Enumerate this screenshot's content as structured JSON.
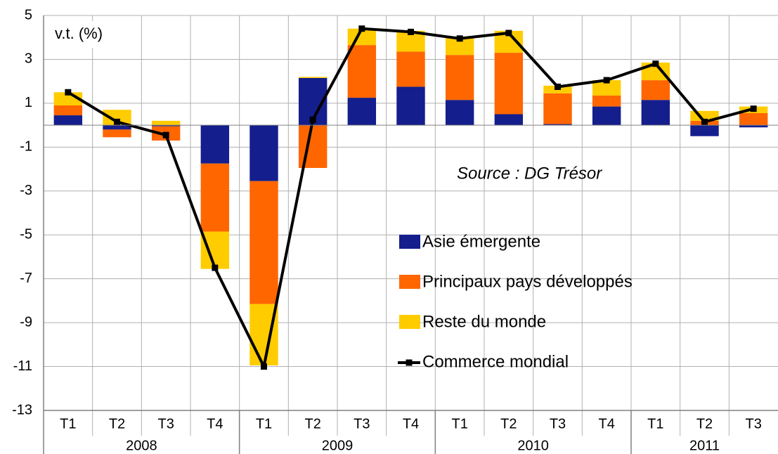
{
  "chart_data": {
    "type": "bar",
    "stacked": true,
    "y_label": "v.t. (%)",
    "annotation": "Source : DG Trésor",
    "categories": [
      "T1",
      "T2",
      "T3",
      "T4",
      "T1",
      "T2",
      "T3",
      "T4",
      "T1",
      "T2",
      "T3",
      "T4",
      "T1",
      "T2",
      "T3"
    ],
    "groups": [
      "2008",
      "2009",
      "2010",
      "2011"
    ],
    "series": [
      {
        "name": "Asie émergente",
        "type": "bar",
        "color": "#141e8c",
        "values": [
          0.45,
          -0.2,
          -0.05,
          -1.75,
          -2.55,
          2.15,
          1.25,
          1.75,
          1.15,
          0.5,
          0.05,
          0.85,
          1.15,
          -0.5,
          -0.1
        ]
      },
      {
        "name": "Principaux pays développés",
        "type": "bar",
        "color": "#ff6600",
        "values": [
          0.45,
          -0.35,
          -0.65,
          -3.1,
          -5.6,
          -1.95,
          2.4,
          1.6,
          2.05,
          2.8,
          1.4,
          0.5,
          0.9,
          0.2,
          0.55
        ]
      },
      {
        "name": "Reste du monde",
        "type": "bar",
        "color": "#ffcc00",
        "values": [
          0.6,
          0.7,
          0.2,
          -1.7,
          -2.8,
          0.05,
          0.75,
          0.95,
          0.8,
          1.0,
          0.35,
          0.7,
          0.8,
          0.45,
          0.3
        ]
      },
      {
        "name": "Commerce mondial",
        "type": "line",
        "color": "#000000",
        "values": [
          1.5,
          0.15,
          -0.45,
          -6.5,
          -11.0,
          0.25,
          4.4,
          4.25,
          3.95,
          4.2,
          1.75,
          2.05,
          2.8,
          0.15,
          0.75
        ]
      }
    ],
    "ylim": [
      -13,
      5
    ],
    "yticks": [
      -13,
      -11,
      -9,
      -7,
      -5,
      -3,
      -1,
      1,
      3,
      5
    ],
    "grid": true
  }
}
